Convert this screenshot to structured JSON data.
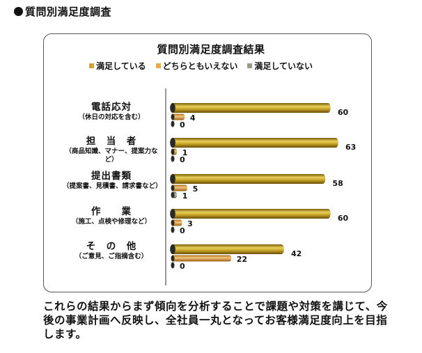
{
  "heading": "質問別満足度調査",
  "chart_data": {
    "type": "bar",
    "orientation": "horizontal",
    "title": "質問別満足度調査結果",
    "categories": [
      {
        "name": "電話応対",
        "note": "（休日の対応を含む）"
      },
      {
        "name": "担　当　者",
        "note": "（商品知識、マナー、提案力など）"
      },
      {
        "name": "提出書類",
        "note": "（提案書、見積書、請求書など）"
      },
      {
        "name": "作　　業",
        "note": "（施工、点検や修理など）"
      },
      {
        "name": "そ　の　他",
        "note": "（ご意見、ご指摘含む）"
      }
    ],
    "series": [
      {
        "name": "満足している",
        "color": "#c9a62a",
        "values": [
          60,
          63,
          58,
          60,
          42
        ]
      },
      {
        "name": "どちらともいえない",
        "color": "#eaa94e",
        "values": [
          4,
          1,
          5,
          3,
          22
        ]
      },
      {
        "name": "満足していない",
        "color": "#9a9a8c",
        "values": [
          0,
          0,
          1,
          0,
          0
        ]
      }
    ],
    "xlim": [
      0,
      63
    ],
    "legend_position": "top",
    "data_labels": true,
    "grid": false
  },
  "closing_text": "これらの結果からまず傾向を分析することで課題や対策を講じて、今後の事業計画へ反映し、全社員一丸となってお客様満足度向上を目指します。"
}
